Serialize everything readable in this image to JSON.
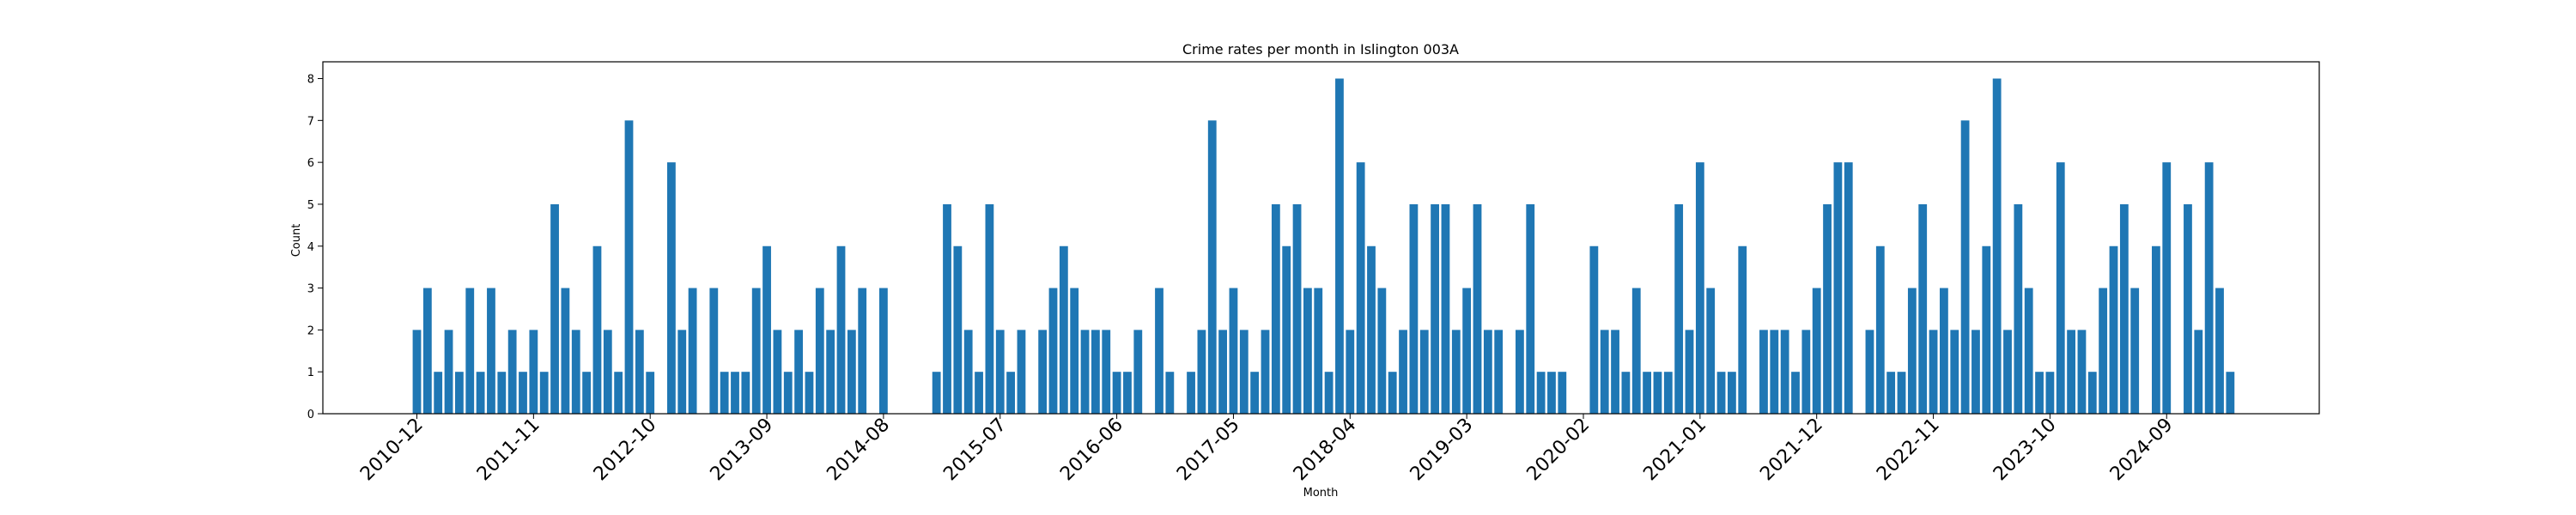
{
  "chart_data": {
    "type": "bar",
    "title": "Crime rates per month in Islington 003A",
    "xlabel": "Month",
    "ylabel": "Count",
    "ylim": [
      0,
      8.4
    ],
    "yticks": [
      0,
      1,
      2,
      3,
      4,
      5,
      6,
      7,
      8
    ],
    "xtick_labels": [
      "2010-12",
      "2011-11",
      "2012-10",
      "2013-09",
      "2014-08",
      "2015-07",
      "2016-06",
      "2017-05",
      "2018-04",
      "2019-03",
      "2020-02",
      "2021-01",
      "2021-12",
      "2022-11",
      "2023-10",
      "2024-09"
    ],
    "xtick_step": 11,
    "bar_color": "#1f77b4",
    "grid": false,
    "start_month": "2010-12",
    "values": [
      2,
      3,
      1,
      2,
      1,
      3,
      1,
      3,
      1,
      2,
      1,
      2,
      1,
      5,
      3,
      2,
      1,
      4,
      2,
      1,
      7,
      2,
      1,
      0,
      6,
      2,
      3,
      0,
      3,
      1,
      1,
      1,
      3,
      4,
      2,
      1,
      2,
      1,
      3,
      2,
      4,
      2,
      3,
      0,
      3,
      0,
      0,
      0,
      0,
      1,
      5,
      4,
      2,
      1,
      5,
      2,
      1,
      2,
      0,
      2,
      3,
      4,
      3,
      2,
      2,
      2,
      1,
      1,
      2,
      0,
      3,
      1,
      0,
      1,
      2,
      7,
      2,
      3,
      2,
      1,
      2,
      5,
      4,
      5,
      3,
      3,
      1,
      8,
      2,
      6,
      4,
      3,
      1,
      2,
      5,
      2,
      5,
      5,
      2,
      3,
      5,
      2,
      2,
      0,
      2,
      5,
      1,
      1,
      1,
      0,
      0,
      4,
      2,
      2,
      1,
      3,
      1,
      1,
      1,
      5,
      2,
      6,
      3,
      1,
      1,
      4,
      0,
      2,
      2,
      2,
      1,
      2,
      3,
      5,
      6,
      6,
      0,
      2,
      4,
      1,
      1,
      3,
      5,
      2,
      3,
      2,
      7,
      2,
      4,
      8,
      2,
      5,
      3,
      1,
      1,
      6,
      2,
      2,
      1,
      3,
      4,
      5,
      3,
      0,
      4,
      6,
      0,
      5,
      2,
      6,
      3,
      1
    ]
  }
}
